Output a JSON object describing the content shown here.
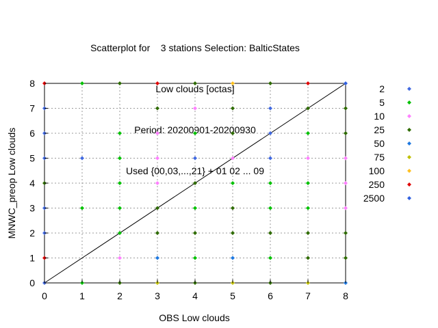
{
  "chart_data": {
    "type": "scatter",
    "title_lines": [
      "Scatterplot for    3 stations Selection: BalticStates",
      "Low clouds [octas]",
      "Period: 20200901-20200930",
      "Used {00,03,...,21} + 01 02 ... 09"
    ],
    "xlabel": "OBS Low clouds",
    "ylabel": "MNWC_preop Low clouds",
    "xlim": [
      0,
      8
    ],
    "ylim": [
      0,
      8
    ],
    "xticks": [
      "0",
      "1",
      "2",
      "3",
      "4",
      "5",
      "6",
      "7",
      "8"
    ],
    "yticks": [
      "0",
      "1",
      "2",
      "3",
      "4",
      "5",
      "6",
      "7",
      "8"
    ],
    "grid": true,
    "diagonal_line": true,
    "legend_position": "right",
    "legend": [
      {
        "label": "2",
        "color": "#4169e1"
      },
      {
        "label": "5",
        "color": "#00c000"
      },
      {
        "label": "10",
        "color": "#ff80ff"
      },
      {
        "label": "25",
        "color": "#2e6b00"
      },
      {
        "label": "50",
        "color": "#1e78e0"
      },
      {
        "label": "75",
        "color": "#c0c000"
      },
      {
        "label": "100",
        "color": "#ffc020"
      },
      {
        "label": "250",
        "color": "#e00000"
      },
      {
        "label": "2500",
        "color": "#3060e0"
      }
    ],
    "points": [
      {
        "x": 0,
        "y": 8,
        "c": "250"
      },
      {
        "x": 1,
        "y": 8,
        "c": "5"
      },
      {
        "x": 2,
        "y": 8,
        "c": "25"
      },
      {
        "x": 3,
        "y": 8,
        "c": "250"
      },
      {
        "x": 4,
        "y": 8,
        "c": "25"
      },
      {
        "x": 5,
        "y": 8,
        "c": "100"
      },
      {
        "x": 6,
        "y": 8,
        "c": "25"
      },
      {
        "x": 7,
        "y": 8,
        "c": "250"
      },
      {
        "x": 8,
        "y": 8,
        "c": "2500"
      },
      {
        "x": 0,
        "y": 7,
        "c": "2"
      },
      {
        "x": 3,
        "y": 7,
        "c": "25"
      },
      {
        "x": 4,
        "y": 7,
        "c": "10"
      },
      {
        "x": 5,
        "y": 7,
        "c": "25"
      },
      {
        "x": 6,
        "y": 7,
        "c": "2"
      },
      {
        "x": 7,
        "y": 7,
        "c": "25"
      },
      {
        "x": 8,
        "y": 7,
        "c": "25"
      },
      {
        "x": 0,
        "y": 6,
        "c": "2"
      },
      {
        "x": 2,
        "y": 6,
        "c": "5"
      },
      {
        "x": 3,
        "y": 6,
        "c": "10"
      },
      {
        "x": 4,
        "y": 6,
        "c": "5"
      },
      {
        "x": 5,
        "y": 6,
        "c": "25"
      },
      {
        "x": 6,
        "y": 6,
        "c": "2"
      },
      {
        "x": 7,
        "y": 6,
        "c": "5"
      },
      {
        "x": 8,
        "y": 6,
        "c": "25"
      },
      {
        "x": 0,
        "y": 5,
        "c": "2"
      },
      {
        "x": 1,
        "y": 5,
        "c": "2"
      },
      {
        "x": 2,
        "y": 5,
        "c": "5"
      },
      {
        "x": 3,
        "y": 5,
        "c": "10"
      },
      {
        "x": 4,
        "y": 5,
        "c": "2"
      },
      {
        "x": 5,
        "y": 5,
        "c": "10"
      },
      {
        "x": 6,
        "y": 5,
        "c": "2"
      },
      {
        "x": 7,
        "y": 5,
        "c": "10"
      },
      {
        "x": 8,
        "y": 5,
        "c": "10"
      },
      {
        "x": 0,
        "y": 4,
        "c": "25"
      },
      {
        "x": 2,
        "y": 4,
        "c": "5"
      },
      {
        "x": 3,
        "y": 4,
        "c": "10"
      },
      {
        "x": 4,
        "y": 4,
        "c": "25"
      },
      {
        "x": 5,
        "y": 4,
        "c": "5"
      },
      {
        "x": 6,
        "y": 4,
        "c": "5"
      },
      {
        "x": 7,
        "y": 4,
        "c": "5"
      },
      {
        "x": 8,
        "y": 4,
        "c": "10"
      },
      {
        "x": 0,
        "y": 3,
        "c": "2"
      },
      {
        "x": 1,
        "y": 3,
        "c": "5"
      },
      {
        "x": 2,
        "y": 3,
        "c": "5"
      },
      {
        "x": 3,
        "y": 3,
        "c": "25"
      },
      {
        "x": 4,
        "y": 3,
        "c": "5"
      },
      {
        "x": 5,
        "y": 3,
        "c": "25"
      },
      {
        "x": 6,
        "y": 3,
        "c": "5"
      },
      {
        "x": 7,
        "y": 3,
        "c": "5"
      },
      {
        "x": 8,
        "y": 3,
        "c": "10"
      },
      {
        "x": 0,
        "y": 2,
        "c": "2"
      },
      {
        "x": 2,
        "y": 2,
        "c": "5"
      },
      {
        "x": 3,
        "y": 2,
        "c": "25"
      },
      {
        "x": 4,
        "y": 2,
        "c": "25"
      },
      {
        "x": 5,
        "y": 2,
        "c": "25"
      },
      {
        "x": 6,
        "y": 2,
        "c": "25"
      },
      {
        "x": 7,
        "y": 2,
        "c": "25"
      },
      {
        "x": 8,
        "y": 2,
        "c": "25"
      },
      {
        "x": 0,
        "y": 1,
        "c": "250"
      },
      {
        "x": 2,
        "y": 1,
        "c": "10"
      },
      {
        "x": 3,
        "y": 1,
        "c": "50"
      },
      {
        "x": 4,
        "y": 1,
        "c": "5"
      },
      {
        "x": 5,
        "y": 1,
        "c": "50"
      },
      {
        "x": 6,
        "y": 1,
        "c": "5"
      },
      {
        "x": 7,
        "y": 1,
        "c": "25"
      },
      {
        "x": 8,
        "y": 1,
        "c": "25"
      },
      {
        "x": 0,
        "y": 0,
        "c": "2"
      },
      {
        "x": 1,
        "y": 0,
        "c": "5"
      },
      {
        "x": 2,
        "y": 0,
        "c": "25"
      },
      {
        "x": 3,
        "y": 0,
        "c": "75"
      },
      {
        "x": 4,
        "y": 0,
        "c": "25"
      },
      {
        "x": 5,
        "y": 0,
        "c": "75"
      },
      {
        "x": 6,
        "y": 0,
        "c": "25"
      },
      {
        "x": 7,
        "y": 0,
        "c": "75"
      },
      {
        "x": 8,
        "y": 0,
        "c": "50"
      }
    ]
  }
}
